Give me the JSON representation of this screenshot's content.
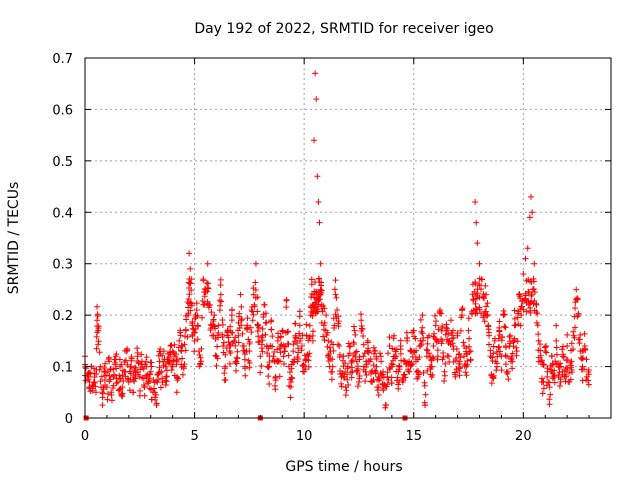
{
  "chart_data": {
    "type": "scatter",
    "title": "Day 192 of 2022, SRMTID for receiver igeo",
    "xlabel": "GPS time / hours",
    "ylabel": "SRMTID / TECUs",
    "xlim": [
      0,
      24
    ],
    "ylim": [
      0,
      0.7
    ],
    "grid": true,
    "marker": "+",
    "color": "#ff0000",
    "xticks": [
      {
        "value": 0,
        "label": "0"
      },
      {
        "value": 5,
        "label": "5"
      },
      {
        "value": 10,
        "label": "10"
      },
      {
        "value": 15,
        "label": "15"
      },
      {
        "value": 20,
        "label": "20"
      }
    ],
    "yticks": [
      {
        "value": 0,
        "label": "0"
      },
      {
        "value": 0.1,
        "label": "0.1"
      },
      {
        "value": 0.2,
        "label": "0.2"
      },
      {
        "value": 0.3,
        "label": "0.3"
      },
      {
        "value": 0.4,
        "label": "0.4"
      },
      {
        "value": 0.5,
        "label": "0.5"
      },
      {
        "value": 0.6,
        "label": "0.6"
      },
      {
        "value": 0.7,
        "label": "0.7"
      }
    ],
    "gaps_at_zero": [
      0.05,
      8.0,
      14.6
    ],
    "series": [
      {
        "name": "SRMTID",
        "points": [
          [
            0.0,
            0.12
          ],
          [
            0.1,
            0.08
          ],
          [
            0.2,
            0.06
          ],
          [
            0.3,
            0.1
          ],
          [
            0.4,
            0.07
          ],
          [
            0.5,
            0.05
          ],
          [
            0.55,
            0.19
          ],
          [
            0.6,
            0.17
          ],
          [
            0.7,
            0.1
          ],
          [
            0.8,
            0.04
          ],
          [
            0.9,
            0.09
          ],
          [
            1.0,
            0.06
          ],
          [
            1.1,
            0.11
          ],
          [
            1.2,
            0.05
          ],
          [
            1.3,
            0.08
          ],
          [
            1.4,
            0.12
          ],
          [
            1.5,
            0.07
          ],
          [
            1.6,
            0.1
          ],
          [
            1.7,
            0.06
          ],
          [
            1.8,
            0.09
          ],
          [
            1.9,
            0.13
          ],
          [
            2.0,
            0.07
          ],
          [
            2.1,
            0.1
          ],
          [
            2.2,
            0.05
          ],
          [
            2.3,
            0.09
          ],
          [
            2.4,
            0.12
          ],
          [
            2.5,
            0.08
          ],
          [
            2.6,
            0.11
          ],
          [
            2.7,
            0.06
          ],
          [
            2.8,
            0.1
          ],
          [
            2.9,
            0.07
          ],
          [
            3.0,
            0.09
          ],
          [
            3.1,
            0.05
          ],
          [
            3.2,
            0.04
          ],
          [
            3.3,
            0.07
          ],
          [
            3.4,
            0.11
          ],
          [
            3.5,
            0.09
          ],
          [
            3.6,
            0.13
          ],
          [
            3.7,
            0.08
          ],
          [
            3.8,
            0.11
          ],
          [
            3.9,
            0.14
          ],
          [
            4.0,
            0.1
          ],
          [
            4.1,
            0.12
          ],
          [
            4.2,
            0.08
          ],
          [
            4.3,
            0.15
          ],
          [
            4.4,
            0.13
          ],
          [
            4.5,
            0.1
          ],
          [
            4.6,
            0.17
          ],
          [
            4.7,
            0.2
          ],
          [
            4.75,
            0.32
          ],
          [
            4.8,
            0.29
          ],
          [
            4.85,
            0.27
          ],
          [
            4.9,
            0.18
          ],
          [
            5.0,
            0.15
          ],
          [
            5.1,
            0.21
          ],
          [
            5.2,
            0.13
          ],
          [
            5.3,
            0.11
          ],
          [
            5.4,
            0.27
          ],
          [
            5.5,
            0.25
          ],
          [
            5.6,
            0.3
          ],
          [
            5.7,
            0.22
          ],
          [
            5.8,
            0.16
          ],
          [
            5.9,
            0.2
          ],
          [
            6.0,
            0.12
          ],
          [
            6.1,
            0.18
          ],
          [
            6.2,
            0.24
          ],
          [
            6.3,
            0.14
          ],
          [
            6.4,
            0.1
          ],
          [
            6.5,
            0.17
          ],
          [
            6.6,
            0.13
          ],
          [
            6.7,
            0.2
          ],
          [
            6.8,
            0.15
          ],
          [
            6.9,
            0.11
          ],
          [
            7.0,
            0.16
          ],
          [
            7.1,
            0.24
          ],
          [
            7.2,
            0.14
          ],
          [
            7.3,
            0.1
          ],
          [
            7.4,
            0.18
          ],
          [
            7.5,
            0.13
          ],
          [
            7.6,
            0.21
          ],
          [
            7.7,
            0.24
          ],
          [
            7.8,
            0.3
          ],
          [
            7.9,
            0.18
          ],
          [
            8.0,
            0.12
          ],
          [
            8.1,
            0.16
          ],
          [
            8.2,
            0.22
          ],
          [
            8.3,
            0.14
          ],
          [
            8.4,
            0.1
          ],
          [
            8.5,
            0.19
          ],
          [
            8.6,
            0.12
          ],
          [
            8.7,
            0.08
          ],
          [
            8.8,
            0.15
          ],
          [
            8.9,
            0.11
          ],
          [
            9.0,
            0.17
          ],
          [
            9.1,
            0.13
          ],
          [
            9.2,
            0.23
          ],
          [
            9.3,
            0.1
          ],
          [
            9.4,
            0.07
          ],
          [
            9.5,
            0.13
          ],
          [
            9.6,
            0.16
          ],
          [
            9.7,
            0.11
          ],
          [
            9.8,
            0.18
          ],
          [
            9.9,
            0.14
          ],
          [
            10.0,
            0.09
          ],
          [
            10.1,
            0.16
          ],
          [
            10.2,
            0.12
          ],
          [
            10.3,
            0.2
          ],
          [
            10.35,
            0.26
          ],
          [
            10.4,
            0.15
          ],
          [
            10.45,
            0.54
          ],
          [
            10.5,
            0.67
          ],
          [
            10.55,
            0.62
          ],
          [
            10.6,
            0.47
          ],
          [
            10.65,
            0.42
          ],
          [
            10.7,
            0.38
          ],
          [
            10.75,
            0.3
          ],
          [
            10.8,
            0.22
          ],
          [
            10.9,
            0.18
          ],
          [
            11.0,
            0.2
          ],
          [
            11.1,
            0.15
          ],
          [
            11.2,
            0.13
          ],
          [
            11.3,
            0.1
          ],
          [
            11.4,
            0.25
          ],
          [
            11.5,
            0.21
          ],
          [
            11.6,
            0.14
          ],
          [
            11.7,
            0.08
          ],
          [
            11.8,
            0.12
          ],
          [
            11.9,
            0.06
          ],
          [
            12.0,
            0.1
          ],
          [
            12.1,
            0.14
          ],
          [
            12.2,
            0.09
          ],
          [
            12.3,
            0.17
          ],
          [
            12.4,
            0.11
          ],
          [
            12.5,
            0.07
          ],
          [
            12.6,
            0.19
          ],
          [
            12.7,
            0.12
          ],
          [
            12.8,
            0.09
          ],
          [
            12.9,
            0.15
          ],
          [
            13.0,
            0.11
          ],
          [
            13.1,
            0.07
          ],
          [
            13.2,
            0.13
          ],
          [
            13.3,
            0.1
          ],
          [
            13.4,
            0.06
          ],
          [
            13.5,
            0.12
          ],
          [
            13.6,
            0.09
          ],
          [
            13.7,
            0.02
          ],
          [
            13.8,
            0.08
          ],
          [
            13.9,
            0.14
          ],
          [
            14.0,
            0.1
          ],
          [
            14.1,
            0.16
          ],
          [
            14.2,
            0.12
          ],
          [
            14.3,
            0.09
          ],
          [
            14.4,
            0.14
          ],
          [
            14.5,
            0.07
          ],
          [
            14.6,
            0.11
          ],
          [
            14.7,
            0.15
          ],
          [
            14.8,
            0.09
          ],
          [
            14.9,
            0.13
          ],
          [
            15.0,
            0.17
          ],
          [
            15.1,
            0.11
          ],
          [
            15.2,
            0.08
          ],
          [
            15.3,
            0.15
          ],
          [
            15.4,
            0.2
          ],
          [
            15.5,
            0.03
          ],
          [
            15.6,
            0.12
          ],
          [
            15.7,
            0.16
          ],
          [
            15.8,
            0.1
          ],
          [
            15.9,
            0.14
          ],
          [
            16.0,
            0.18
          ],
          [
            16.1,
            0.12
          ],
          [
            16.2,
            0.21
          ],
          [
            16.3,
            0.15
          ],
          [
            16.4,
            0.09
          ],
          [
            16.5,
            0.17
          ],
          [
            16.6,
            0.12
          ],
          [
            16.7,
            0.19
          ],
          [
            16.8,
            0.14
          ],
          [
            16.9,
            0.08
          ],
          [
            17.0,
            0.16
          ],
          [
            17.1,
            0.11
          ],
          [
            17.2,
            0.2
          ],
          [
            17.3,
            0.14
          ],
          [
            17.4,
            0.1
          ],
          [
            17.5,
            0.17
          ],
          [
            17.6,
            0.13
          ],
          [
            17.7,
            0.26
          ],
          [
            17.8,
            0.42
          ],
          [
            17.85,
            0.38
          ],
          [
            17.9,
            0.34
          ],
          [
            18.0,
            0.3
          ],
          [
            18.1,
            0.27
          ],
          [
            18.2,
            0.2
          ],
          [
            18.3,
            0.24
          ],
          [
            18.4,
            0.18
          ],
          [
            18.5,
            0.12
          ],
          [
            18.6,
            0.08
          ],
          [
            18.7,
            0.15
          ],
          [
            18.8,
            0.1
          ],
          [
            18.9,
            0.17
          ],
          [
            19.0,
            0.12
          ],
          [
            19.1,
            0.2
          ],
          [
            19.2,
            0.14
          ],
          [
            19.3,
            0.09
          ],
          [
            19.4,
            0.16
          ],
          [
            19.5,
            0.11
          ],
          [
            19.6,
            0.18
          ],
          [
            19.7,
            0.13
          ],
          [
            19.8,
            0.24
          ],
          [
            19.9,
            0.2
          ],
          [
            20.0,
            0.28
          ],
          [
            20.1,
            0.31
          ],
          [
            20.2,
            0.33
          ],
          [
            20.3,
            0.39
          ],
          [
            20.35,
            0.43
          ],
          [
            20.4,
            0.4
          ],
          [
            20.5,
            0.3
          ],
          [
            20.6,
            0.22
          ],
          [
            20.7,
            0.15
          ],
          [
            20.8,
            0.11
          ],
          [
            20.9,
            0.07
          ],
          [
            21.0,
            0.13
          ],
          [
            21.1,
            0.09
          ],
          [
            21.2,
            0.06
          ],
          [
            21.3,
            0.12
          ],
          [
            21.4,
            0.08
          ],
          [
            21.5,
            0.15
          ],
          [
            21.6,
            0.1
          ],
          [
            21.7,
            0.07
          ],
          [
            21.8,
            0.12
          ],
          [
            21.9,
            0.09
          ],
          [
            22.0,
            0.14
          ],
          [
            22.1,
            0.07
          ],
          [
            22.2,
            0.11
          ],
          [
            22.3,
            0.16
          ],
          [
            22.4,
            0.23
          ],
          [
            22.5,
            0.2
          ],
          [
            22.6,
            0.13
          ],
          [
            22.7,
            0.1
          ],
          [
            22.8,
            0.14
          ],
          [
            22.9,
            0.08
          ]
        ]
      }
    ]
  }
}
